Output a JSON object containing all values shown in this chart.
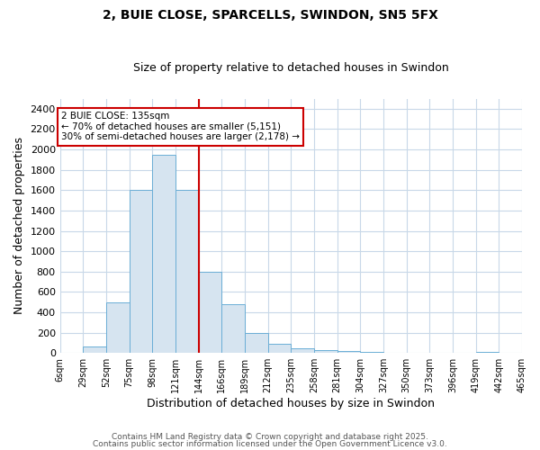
{
  "title1": "2, BUIE CLOSE, SPARCELLS, SWINDON, SN5 5FX",
  "title2": "Size of property relative to detached houses in Swindon",
  "xlabel": "Distribution of detached houses by size in Swindon",
  "ylabel": "Number of detached properties",
  "bin_labels": [
    "6sqm",
    "29sqm",
    "52sqm",
    "75sqm",
    "98sqm",
    "121sqm",
    "144sqm",
    "166sqm",
    "189sqm",
    "212sqm",
    "235sqm",
    "258sqm",
    "281sqm",
    "304sqm",
    "327sqm",
    "350sqm",
    "373sqm",
    "396sqm",
    "419sqm",
    "442sqm",
    "465sqm"
  ],
  "bar_heights": [
    0,
    60,
    500,
    1600,
    1950,
    1600,
    800,
    480,
    200,
    90,
    45,
    30,
    20,
    10,
    5,
    5,
    2,
    0,
    15,
    0,
    0
  ],
  "bar_color": "#d6e4f0",
  "bar_edgecolor": "#6baed6",
  "vline_color": "#cc0000",
  "annotation_title": "2 BUIE CLOSE: 135sqm",
  "annotation_line2": "← 70% of detached houses are smaller (5,151)",
  "annotation_line3": "30% of semi-detached houses are larger (2,178) →",
  "annotation_box_edgecolor": "#cc0000",
  "ylim": [
    0,
    2500
  ],
  "yticks": [
    0,
    200,
    400,
    600,
    800,
    1000,
    1200,
    1400,
    1600,
    1800,
    2000,
    2200,
    2400
  ],
  "footnote1": "Contains HM Land Registry data © Crown copyright and database right 2025.",
  "footnote2": "Contains public sector information licensed under the Open Government Licence v3.0.",
  "plot_bg_color": "#ffffff",
  "fig_bg_color": "#ffffff",
  "grid_color": "#c8d8e8"
}
